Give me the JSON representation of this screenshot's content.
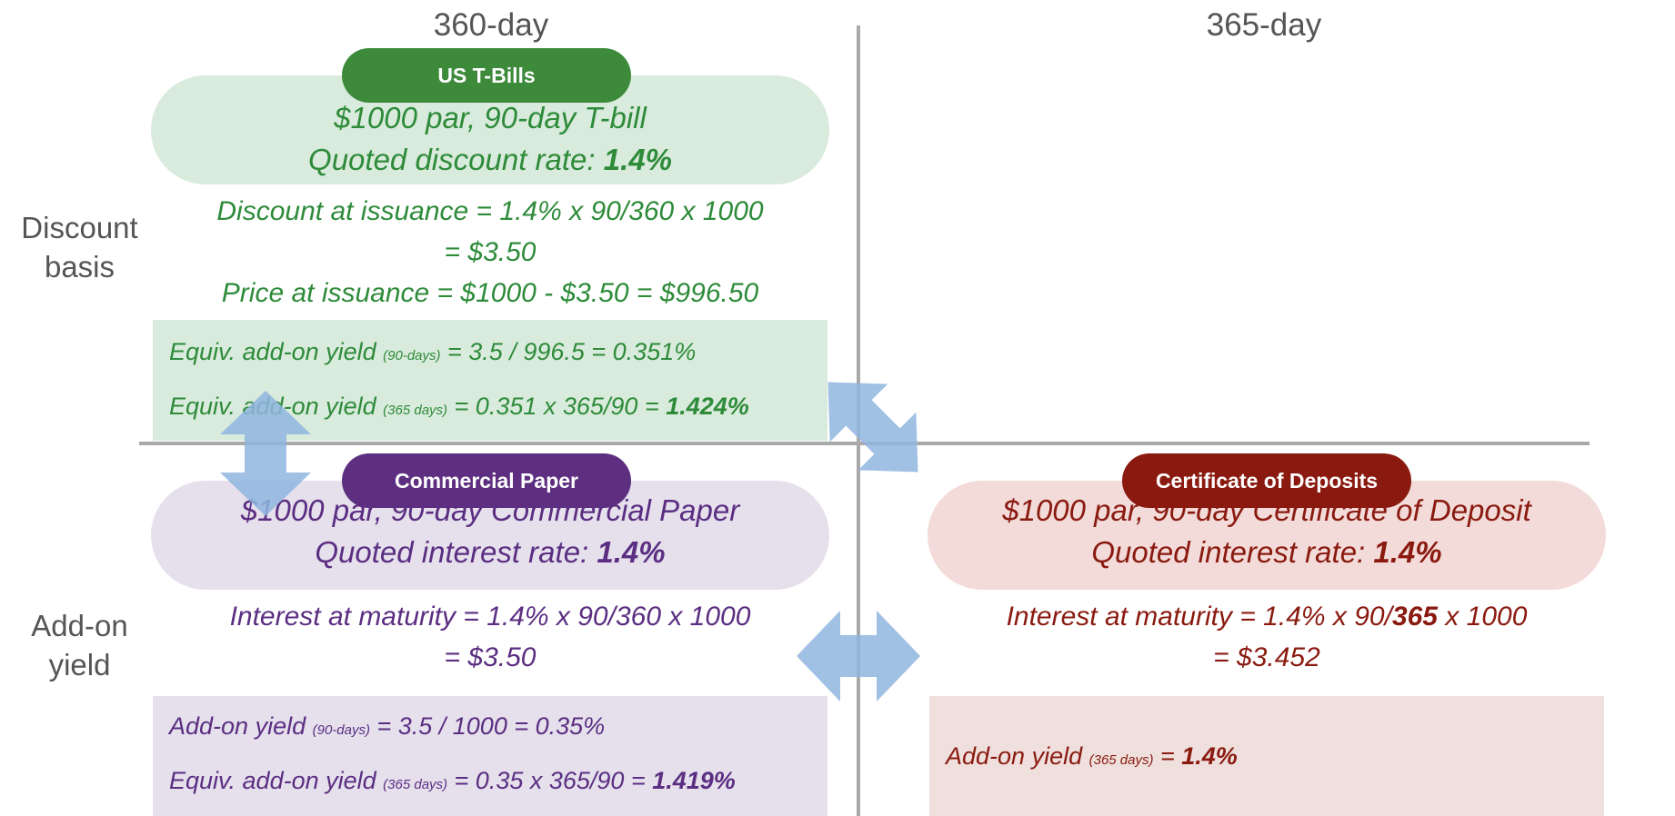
{
  "columns": {
    "left": "360-day",
    "right": "365-day"
  },
  "rows": {
    "top": [
      "Discount",
      "basis"
    ],
    "bottom": [
      "Add-on",
      "yield"
    ]
  },
  "tbills": {
    "badge": "US T-Bills",
    "header_line1": "$1000 par, 90-day T-bill",
    "header_line2_pre": "Quoted discount rate: ",
    "header_line2_bold": "1.4%",
    "calc_line1": "Discount at issuance = 1.4% x 90/360 x 1000",
    "calc_line2": "= $3.50",
    "calc_line3": "Price at issuance = $1000 - $3.50 = $996.50",
    "box_line1_pre": "Equiv. add-on yield ",
    "box_line1_sub": "(90-days)",
    "box_line1_post": "  = 3.5 / 996.5 = 0.351%",
    "box_line2_pre": "Equiv. add-on yield ",
    "box_line2_sub": "(365 days)",
    "box_line2_post": "  = 0.351 x 365/90 = ",
    "box_line2_bold": "1.424%"
  },
  "commercial_paper": {
    "badge": "Commercial Paper",
    "header_line1": "$1000 par, 90-day Commercial Paper",
    "header_line2_pre": "Quoted interest rate: ",
    "header_line2_bold": "1.4%",
    "calc_line1": "Interest at maturity = 1.4% x 90/360 x 1000",
    "calc_line2": "= $3.50",
    "box_line1_pre": "Add-on yield ",
    "box_line1_sub": "(90-days)",
    "box_line1_post": "  = 3.5 / 1000 = 0.35%",
    "box_line2_pre": "Equiv. add-on yield ",
    "box_line2_sub": "(365 days)",
    "box_line2_post": "  = 0.35 x 365/90 = ",
    "box_line2_bold": "1.419%"
  },
  "certificate_of_deposit": {
    "badge": "Certificate of Deposits",
    "header_line1": "$1000 par, 90-day Certificate of Deposit",
    "header_line2_pre": "Quoted interest rate: ",
    "header_line2_bold": "1.4%",
    "calc_line1_pre": "Interest at maturity = 1.4% x 90/",
    "calc_line1_bold": "365",
    "calc_line1_post": " x 1000",
    "calc_line2": "= $3.452",
    "box_line1_pre": "Add-on yield ",
    "box_line1_sub": "(365 days)",
    "box_line1_post": "  = ",
    "box_line1_bold": "1.4%"
  },
  "colors": {
    "green": "#2e8b3a",
    "purple": "#5b2e82",
    "red": "#8a1a10",
    "arrow": "#8fb5df"
  }
}
